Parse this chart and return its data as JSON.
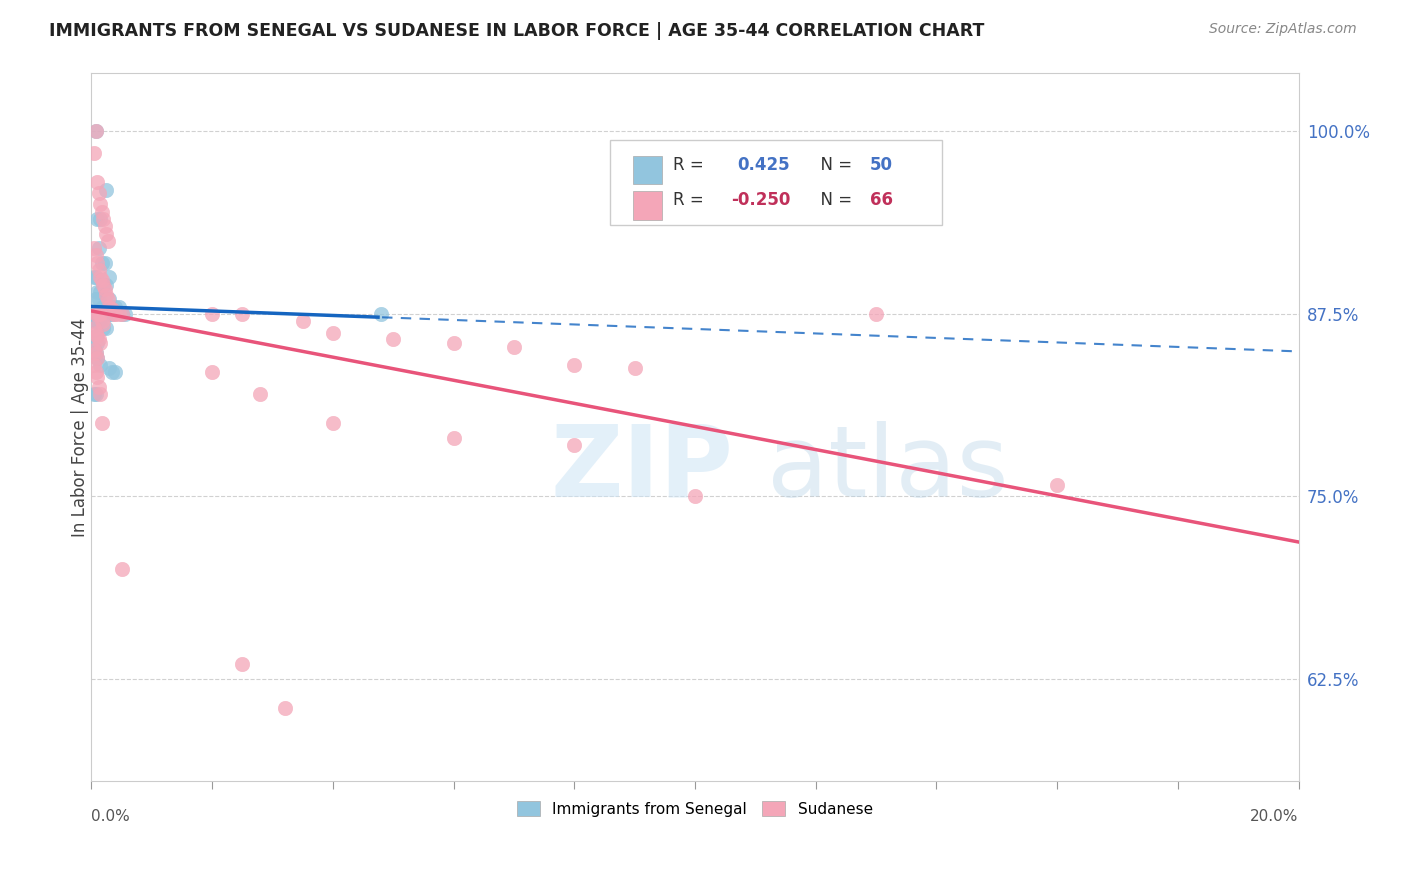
{
  "title": "IMMIGRANTS FROM SENEGAL VS SUDANESE IN LABOR FORCE | AGE 35-44 CORRELATION CHART",
  "source": "Source: ZipAtlas.com",
  "ylabel": "In Labor Force | Age 35-44",
  "yticks": [
    0.625,
    0.75,
    0.875,
    1.0
  ],
  "ytick_labels": [
    "62.5%",
    "75.0%",
    "87.5%",
    "100.0%"
  ],
  "xmin": 0.0,
  "xmax": 0.2,
  "ymin": 0.555,
  "ymax": 1.04,
  "blue_color": "#92c5de",
  "pink_color": "#f4a6b8",
  "blue_line_color": "#1565c0",
  "pink_line_color": "#e8547a",
  "senegal_x": [
    0.0008,
    0.0025,
    0.001,
    0.0015,
    0.0012,
    0.0018,
    0.0022,
    0.0008,
    0.0005,
    0.003,
    0.002,
    0.0025,
    0.001,
    0.0015,
    0.0008,
    0.0012,
    0.003,
    0.002,
    0.0025,
    0.0018,
    0.0005,
    0.001,
    0.0012,
    0.0015,
    0.0022,
    0.0028,
    0.003,
    0.0035,
    0.004,
    0.0045,
    0.005,
    0.0055,
    0.0005,
    0.0008,
    0.001,
    0.0015,
    0.002,
    0.0025,
    0.0008,
    0.001,
    0.0005,
    0.0008,
    0.001,
    0.0015,
    0.003,
    0.0035,
    0.004,
    0.048,
    0.0005,
    0.0008
  ],
  "senegal_y": [
    1.0,
    0.96,
    0.94,
    0.94,
    0.92,
    0.91,
    0.91,
    0.9,
    0.9,
    0.9,
    0.895,
    0.895,
    0.89,
    0.89,
    0.885,
    0.885,
    0.885,
    0.88,
    0.88,
    0.875,
    0.875,
    0.875,
    0.875,
    0.875,
    0.875,
    0.875,
    0.875,
    0.875,
    0.88,
    0.88,
    0.875,
    0.875,
    0.87,
    0.87,
    0.87,
    0.87,
    0.865,
    0.865,
    0.86,
    0.855,
    0.85,
    0.848,
    0.845,
    0.84,
    0.838,
    0.835,
    0.835,
    0.875,
    0.82,
    0.82
  ],
  "sudanese_x": [
    0.0008,
    0.0005,
    0.001,
    0.0012,
    0.0015,
    0.0018,
    0.002,
    0.0022,
    0.0025,
    0.0028,
    0.0005,
    0.0008,
    0.001,
    0.0012,
    0.0015,
    0.0018,
    0.002,
    0.0022,
    0.0025,
    0.0028,
    0.003,
    0.0035,
    0.0038,
    0.004,
    0.0045,
    0.005,
    0.0008,
    0.001,
    0.0012,
    0.0015,
    0.0018,
    0.002,
    0.0005,
    0.0008,
    0.001,
    0.0012,
    0.0015,
    0.0005,
    0.0008,
    0.001,
    0.02,
    0.025,
    0.035,
    0.04,
    0.05,
    0.06,
    0.07,
    0.08,
    0.09,
    0.13,
    0.0005,
    0.0008,
    0.001,
    0.0012,
    0.0015,
    0.0018,
    0.02,
    0.028,
    0.04,
    0.06,
    0.08,
    0.1,
    0.025,
    0.032,
    0.005,
    0.16
  ],
  "sudanese_y": [
    1.0,
    0.985,
    0.965,
    0.958,
    0.95,
    0.945,
    0.94,
    0.935,
    0.93,
    0.925,
    0.92,
    0.915,
    0.91,
    0.905,
    0.9,
    0.898,
    0.895,
    0.892,
    0.888,
    0.885,
    0.88,
    0.878,
    0.875,
    0.875,
    0.875,
    0.875,
    0.875,
    0.875,
    0.875,
    0.875,
    0.87,
    0.868,
    0.865,
    0.862,
    0.86,
    0.858,
    0.855,
    0.85,
    0.848,
    0.845,
    0.875,
    0.875,
    0.87,
    0.862,
    0.858,
    0.855,
    0.852,
    0.84,
    0.838,
    0.875,
    0.84,
    0.835,
    0.832,
    0.825,
    0.82,
    0.8,
    0.835,
    0.82,
    0.8,
    0.79,
    0.785,
    0.75,
    0.635,
    0.605,
    0.7,
    0.758
  ]
}
